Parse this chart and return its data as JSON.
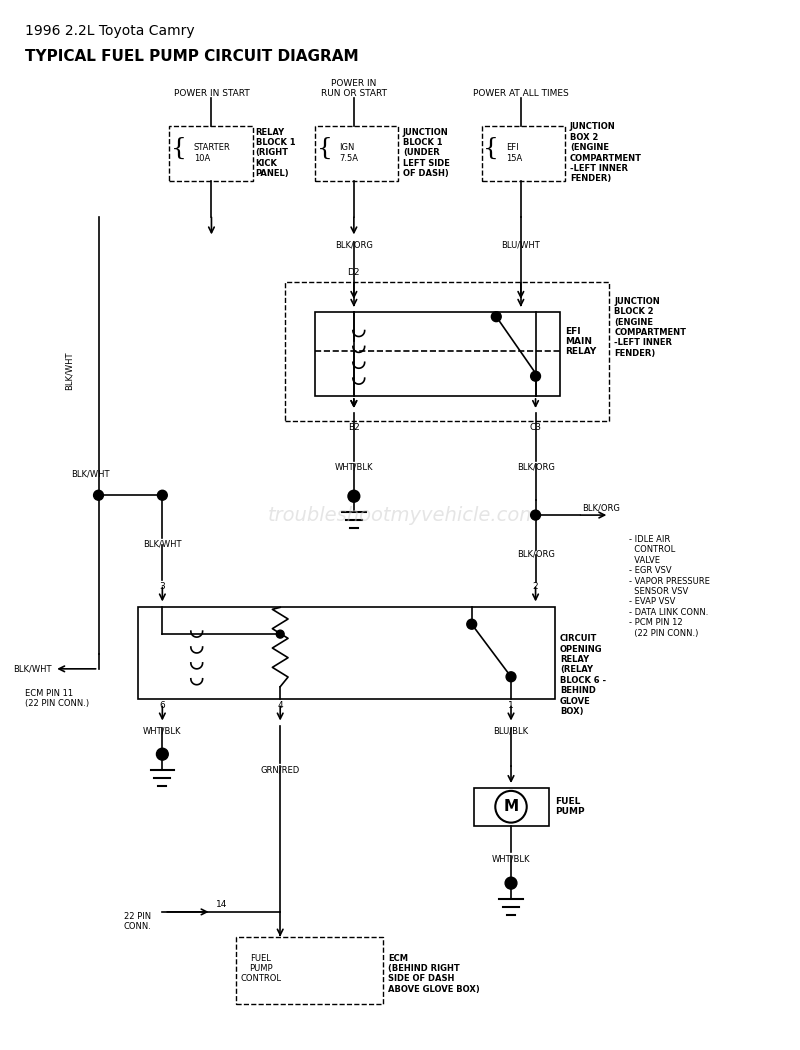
{
  "title_line1": "1996 2.2L Toyota Camry",
  "title_line2": "TYPICAL FUEL PUMP CIRCUIT DIAGRAM",
  "bg_color": "#ffffff",
  "line_color": "#000000",
  "watermark": "troubleshootmyvehicle.com",
  "components": {
    "power_labels": [
      "POWER IN START",
      "POWER IN\nRUN OR START",
      "POWER AT ALL TIMES"
    ],
    "relay_block1_label": "RELAY\nBLOCK 1\n(RIGHT\nKICK\nPANEL)",
    "starter_label": "STARTER\n10A",
    "ign_label": "IGN\n7.5A",
    "junction_block1_label": "JUNCTION\nBLOCK 1\n(UNDER\nLEFT SIDE\nOF DASH)",
    "efi_label": "EFI\n15A",
    "junction_box2_label": "JUNCTION\nBOX 2\n(ENGINE\nCOMPARTMENT\n-LEFT INNER\nFENDER)",
    "junction_block2_label": "JUNCTION\nBLOCK 2\n(ENGINE\nCOMPARTMENT\n-LEFT INNER\nFENDER)",
    "efi_main_relay_label": "EFI\nMAIN\nRELAY",
    "circuit_opening_relay_label": "CIRCUIT\nOPENING\nRELAY\n(RELAY\nBLOCK 6 -\nBEHIND\nGLOVE\nBOX)",
    "fuel_pump_label": "FUEL\nPUMP",
    "ecm_label": "ECM\n(BEHIND RIGHT\nSIDE OF DASH\nABOVE GLOVE BOX)",
    "fuel_pump_control_label": "FUEL\nPUMP\nCONTROL",
    "idle_air_list": "- IDLE AIR\n  CONTROL\n  VALVE\n- EGR VSV\n- VAPOR PRESSURE\n  SENSOR VSV\n- EVAP VSV\n- DATA LINK CONN.\n- PCM PIN 12\n  (22 PIN CONN.)",
    "wire_labels": {
      "blk_org_top": "BLK/ORG",
      "blu_wht_top": "BLU/WHT",
      "blk_wht_left": "BLK/WHT",
      "wht_blk_b2": "WHT/BLK",
      "blk_org_c3": "BLK/ORG",
      "blk_org_mid": "BLK/ORG",
      "blk_wht_ecm": "BLK/WHT",
      "blk_wht_3": "BLK/WHT",
      "blk_org_2": "BLK/ORG",
      "wht_blk_6": "WHT/BLK",
      "grn_red": "GRN/RED",
      "blu_blk": "BLU/BLK",
      "wht_blk_fuel": "WHT/BLK"
    },
    "pin_labels": {
      "d2": "D2",
      "b2": "B2",
      "c3": "C3",
      "pin3": "3",
      "pin2": "2",
      "pin6": "6",
      "pin4": "4",
      "pin1": "1",
      "pin14": "14",
      "ecm_pin11": "ECM PIN 11\n(22 PIN CONN.)",
      "pin22": "22 PIN\nCONN."
    }
  }
}
